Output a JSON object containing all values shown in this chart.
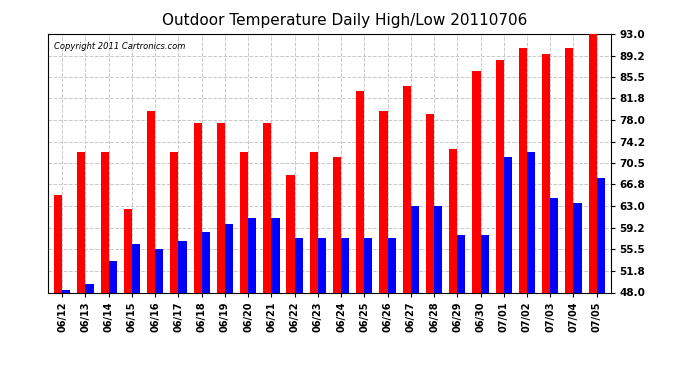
{
  "title": "Outdoor Temperature Daily High/Low 20110706",
  "copyright": "Copyright 2011 Cartronics.com",
  "dates": [
    "06/12",
    "06/13",
    "06/14",
    "06/15",
    "06/16",
    "06/17",
    "06/18",
    "06/19",
    "06/20",
    "06/21",
    "06/22",
    "06/23",
    "06/24",
    "06/25",
    "06/26",
    "06/27",
    "06/28",
    "06/29",
    "06/30",
    "07/01",
    "07/02",
    "07/03",
    "07/04",
    "07/05"
  ],
  "highs": [
    65.0,
    72.5,
    72.5,
    62.5,
    79.5,
    72.5,
    77.5,
    77.5,
    72.5,
    77.5,
    68.5,
    72.5,
    71.5,
    83.0,
    79.5,
    84.0,
    79.0,
    73.0,
    86.5,
    88.5,
    90.5,
    89.5,
    90.5,
    93.0
  ],
  "lows": [
    48.5,
    49.5,
    53.5,
    56.5,
    55.5,
    57.0,
    58.5,
    60.0,
    61.0,
    61.0,
    57.5,
    57.5,
    57.5,
    57.5,
    57.5,
    63.0,
    63.0,
    58.0,
    58.0,
    71.5,
    72.5,
    64.5,
    63.5,
    68.0
  ],
  "yticks": [
    48.0,
    51.8,
    55.5,
    59.2,
    63.0,
    66.8,
    70.5,
    74.2,
    78.0,
    81.8,
    85.5,
    89.2,
    93.0
  ],
  "ymin": 48.0,
  "ymax": 93.0,
  "high_color": "#ff0000",
  "low_color": "#0000ff",
  "bg_color": "#ffffff",
  "grid_color": "#c8c8c8",
  "bar_width": 0.35,
  "title_fontsize": 11
}
